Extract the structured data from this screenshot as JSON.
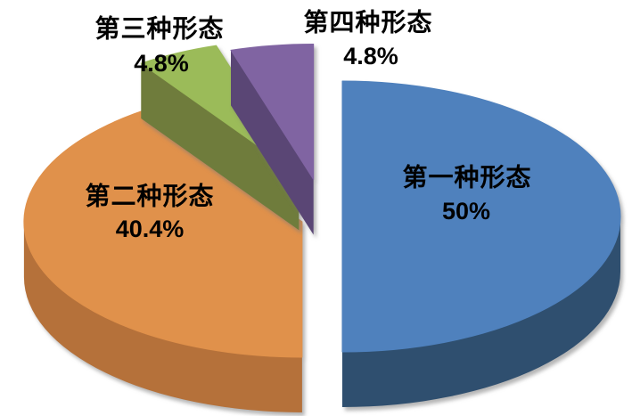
{
  "chart_data": {
    "type": "pie",
    "style": "3d-exploded",
    "title": "",
    "legend": "none",
    "background": "#FFFFFF",
    "label_color": "#000000",
    "direction": "clockwise",
    "start_angle_deg": 0,
    "slices": [
      {
        "name": "第一种形态",
        "value": 50,
        "value_label": "50%",
        "color": "#4F81BD",
        "side_color": "#2F4F6F"
      },
      {
        "name": "第二种形态",
        "value": 40.4,
        "value_label": "40.4%",
        "color": "#E0914B",
        "side_color": "#B5713A"
      },
      {
        "name": "第三种形态",
        "value": 4.8,
        "value_label": "4.8%",
        "color": "#9BBB59",
        "side_color": "#6F7C3C"
      },
      {
        "name": "第四种形态",
        "value": 4.8,
        "value_label": "4.8%",
        "color": "#8064A2",
        "side_color": "#5A4675"
      }
    ]
  }
}
